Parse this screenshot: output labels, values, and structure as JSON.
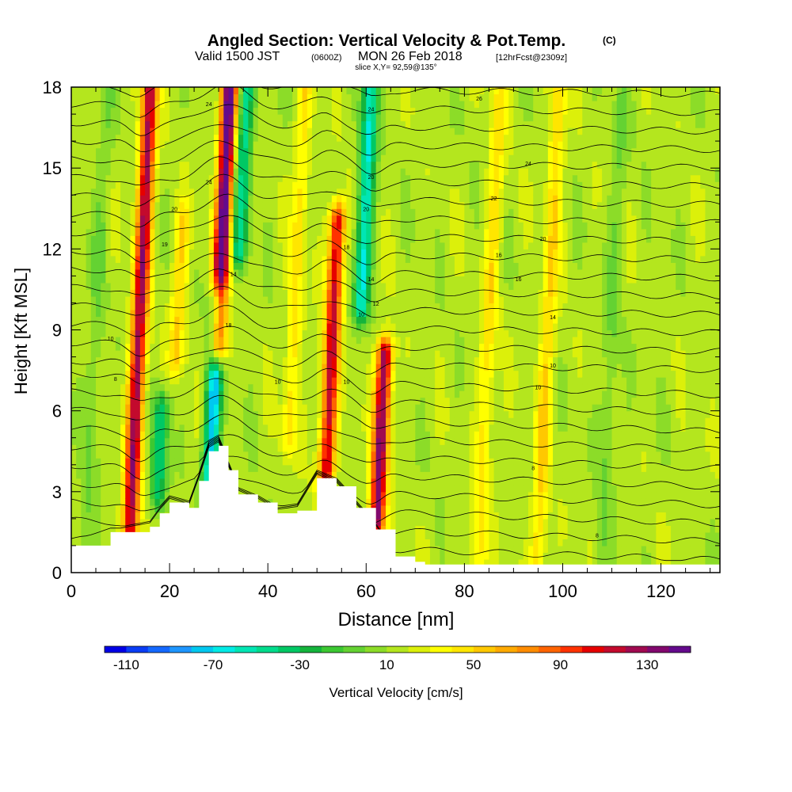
{
  "header": {
    "title_main": "Angled Section: Vertical Velocity & Pot.Temp.",
    "title_unit": "(C)",
    "valid_prefix": "Valid 1500 JST",
    "valid_utc": "(0600Z)",
    "valid_date": "MON 26 Feb 2018",
    "valid_fcst": "[12hrFcst@2309z]",
    "slice": "slice X,Y= 92,59@135°"
  },
  "chart_data": {
    "type": "heatmap",
    "xlabel": "Distance [nm]",
    "ylabel": "Height [Kft MSL]",
    "xlim": [
      0,
      132
    ],
    "ylim": [
      0,
      18
    ],
    "x_ticks": [
      0,
      20,
      40,
      60,
      80,
      100,
      120
    ],
    "x_tick_labels": [
      "0",
      "20",
      "40",
      "60",
      "80",
      "100",
      "120"
    ],
    "y_ticks": [
      0,
      3,
      6,
      9,
      12,
      15,
      18
    ],
    "y_tick_labels": [
      "0",
      "3",
      "6",
      "9",
      "12",
      "15",
      "18"
    ],
    "background_value": 5,
    "updrafts": [
      {
        "x": 14,
        "z0": 1.5,
        "z1": 18,
        "peak": 110
      },
      {
        "x": 31,
        "z0": 8.5,
        "z1": 18,
        "peak": 140
      },
      {
        "x": 53,
        "z0": 3.5,
        "z1": 13,
        "peak": 100
      },
      {
        "x": 63,
        "z0": 2,
        "z1": 8,
        "peak": 120
      },
      {
        "x": 22,
        "z0": 8,
        "z1": 13,
        "peak": 35
      },
      {
        "x": 46,
        "z0": 5,
        "z1": 18,
        "peak": 30
      },
      {
        "x": 85,
        "z0": 0,
        "z1": 18,
        "peak": 30
      },
      {
        "x": 97,
        "z0": 0,
        "z1": 18,
        "peak": 35
      }
    ],
    "downdrafts": [
      {
        "x": 29,
        "z0": 3.5,
        "z1": 10,
        "peak": -90
      },
      {
        "x": 35,
        "z0": 12,
        "z1": 18,
        "peak": -60
      },
      {
        "x": 60,
        "z0": 10,
        "z1": 18,
        "peak": -75
      },
      {
        "x": 18,
        "z0": 3,
        "z1": 6,
        "peak": -55
      },
      {
        "x": 5,
        "z0": 0,
        "z1": 18,
        "peak": -15
      },
      {
        "x": 110,
        "z0": 0,
        "z1": 18,
        "peak": -15
      }
    ],
    "terrain": {
      "x": [
        0,
        8,
        10,
        16,
        18,
        20,
        24,
        26,
        28,
        30,
        32,
        34,
        38,
        42,
        46,
        50,
        54,
        58,
        62,
        66,
        70,
        72,
        132
      ],
      "z": [
        1.0,
        1.5,
        1.5,
        1.7,
        2.2,
        2.6,
        2.4,
        3.4,
        4.5,
        4.7,
        3.8,
        2.9,
        2.6,
        2.2,
        2.3,
        3.5,
        3.2,
        2.4,
        1.6,
        0.6,
        0.4,
        0.3,
        0.3
      ]
    },
    "theta_labels": [
      {
        "x": 8,
        "z": 8.6,
        "text": "10"
      },
      {
        "x": 9,
        "z": 7.1,
        "text": "8"
      },
      {
        "x": 28,
        "z": 17.3,
        "text": "24"
      },
      {
        "x": 28,
        "z": 14.4,
        "text": "24"
      },
      {
        "x": 33,
        "z": 11,
        "text": "14"
      },
      {
        "x": 32,
        "z": 9.1,
        "text": "18"
      },
      {
        "x": 19,
        "z": 12.1,
        "text": "19"
      },
      {
        "x": 21,
        "z": 13.4,
        "text": "20"
      },
      {
        "x": 56,
        "z": 12,
        "text": "18"
      },
      {
        "x": 61,
        "z": 17.1,
        "text": "24"
      },
      {
        "x": 61,
        "z": 14.6,
        "text": "20"
      },
      {
        "x": 60,
        "z": 13.4,
        "text": "20"
      },
      {
        "x": 61,
        "z": 10.8,
        "text": "14"
      },
      {
        "x": 62,
        "z": 9.9,
        "text": "12"
      },
      {
        "x": 59,
        "z": 9.5,
        "text": "10"
      },
      {
        "x": 56,
        "z": 7,
        "text": "10"
      },
      {
        "x": 42,
        "z": 7,
        "text": "10"
      },
      {
        "x": 83,
        "z": 17.5,
        "text": "26"
      },
      {
        "x": 93,
        "z": 15.1,
        "text": "24"
      },
      {
        "x": 86,
        "z": 13.8,
        "text": "22"
      },
      {
        "x": 96,
        "z": 12.3,
        "text": "20"
      },
      {
        "x": 87,
        "z": 11.7,
        "text": "16"
      },
      {
        "x": 91,
        "z": 10.8,
        "text": "16"
      },
      {
        "x": 98,
        "z": 9.4,
        "text": "14"
      },
      {
        "x": 98,
        "z": 7.6,
        "text": "10"
      },
      {
        "x": 95,
        "z": 6.8,
        "text": "10"
      },
      {
        "x": 94,
        "z": 3.8,
        "text": "8"
      },
      {
        "x": 107,
        "z": 1.3,
        "text": "8"
      }
    ]
  },
  "colorbar": {
    "label": "Vertical Velocity [cm/s]",
    "tick_labels": [
      "-110",
      "-70",
      "-30",
      "10",
      "50",
      "90",
      "130"
    ],
    "colors": [
      "#0000e6",
      "#0a3df5",
      "#1469ff",
      "#1e96ff",
      "#00c8f0",
      "#00ebe6",
      "#00e6b4",
      "#00dc8c",
      "#00c864",
      "#14b43c",
      "#3cc832",
      "#64d232",
      "#8cdc28",
      "#b4e61e",
      "#dcf00a",
      "#ffff00",
      "#ffe600",
      "#ffc800",
      "#ffaa00",
      "#ff8c00",
      "#ff6400",
      "#ff3200",
      "#e60000",
      "#c30a2d",
      "#a00a50",
      "#82086e",
      "#640a8c"
    ]
  }
}
